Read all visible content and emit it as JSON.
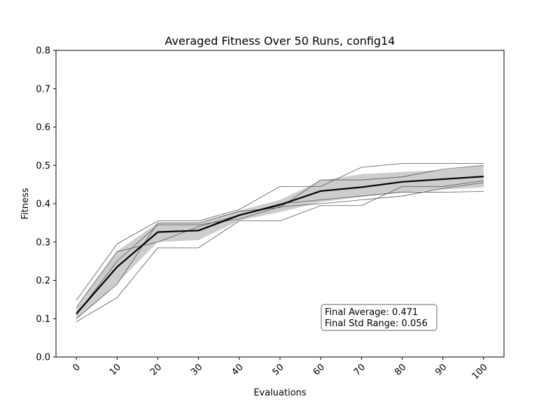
{
  "chart_data": {
    "type": "line",
    "title": "Averaged Fitness Over 50 Runs, config14",
    "xlabel": "Evaluations",
    "ylabel": "Fitness",
    "xlim": [
      -5,
      105
    ],
    "ylim": [
      0.0,
      0.8
    ],
    "x": [
      0,
      10,
      20,
      30,
      40,
      50,
      60,
      70,
      80,
      90,
      100
    ],
    "xticks": [
      "0",
      "10",
      "20",
      "30",
      "40",
      "50",
      "60",
      "70",
      "80",
      "90",
      "100"
    ],
    "yticks": [
      "0.0",
      "0.1",
      "0.2",
      "0.3",
      "0.4",
      "0.5",
      "0.6",
      "0.7",
      "0.8"
    ],
    "grid": false,
    "mean": [
      0.113,
      0.235,
      0.326,
      0.33,
      0.37,
      0.397,
      0.433,
      0.443,
      0.457,
      0.464,
      0.471
    ],
    "band_upper": [
      0.128,
      0.276,
      0.35,
      0.35,
      0.382,
      0.41,
      0.46,
      0.477,
      0.483,
      0.488,
      0.5
    ],
    "band_lower": [
      0.097,
      0.193,
      0.3,
      0.305,
      0.356,
      0.378,
      0.404,
      0.418,
      0.43,
      0.437,
      0.443
    ],
    "runs": [
      {
        "values": [
          0.148,
          0.295,
          0.355,
          0.355,
          0.385,
          0.445,
          0.445,
          0.495,
          0.505,
          0.505,
          0.505
        ]
      },
      {
        "values": [
          0.092,
          0.155,
          0.285,
          0.285,
          0.355,
          0.355,
          0.395,
          0.395,
          0.445,
          0.445,
          0.46
        ]
      },
      {
        "values": [
          0.1,
          0.19,
          0.35,
          0.35,
          0.38,
          0.39,
          0.462,
          0.462,
          0.47,
          0.49,
          0.5
        ]
      },
      {
        "values": [
          0.13,
          0.275,
          0.3,
          0.34,
          0.37,
          0.4,
          0.41,
          0.42,
          0.43,
          0.43,
          0.432
        ]
      },
      {
        "values": [
          0.11,
          0.25,
          0.345,
          0.345,
          0.36,
          0.392,
          0.4,
          0.41,
          0.42,
          0.44,
          0.455
        ]
      }
    ],
    "colors": {
      "mean": "#000000",
      "band": "#c8c8c8",
      "runs": "#555555"
    },
    "annotation": {
      "line1": "Final Average: 0.471",
      "line2": "Final Std Range: 0.056"
    }
  }
}
